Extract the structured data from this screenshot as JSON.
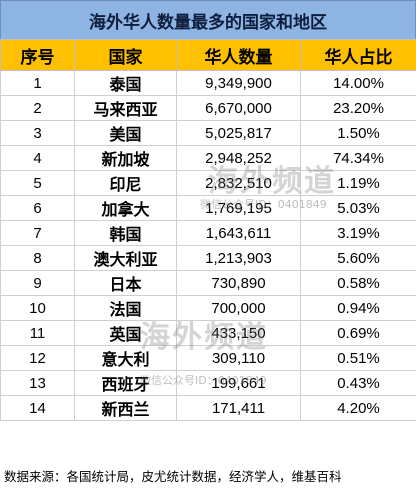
{
  "title": "海外华人数量最多的国家和地区",
  "headers": [
    "序号",
    "国家",
    "华人数量",
    "华人占比"
  ],
  "rows": [
    {
      "rank": "1",
      "country": "泰国",
      "population": "9,349,900",
      "share": "14.00%"
    },
    {
      "rank": "2",
      "country": "马来西亚",
      "population": "6,670,000",
      "share": "23.20%"
    },
    {
      "rank": "3",
      "country": "美国",
      "population": "5,025,817",
      "share": "1.50%"
    },
    {
      "rank": "4",
      "country": "新加坡",
      "population": "2,948,252",
      "share": "74.34%"
    },
    {
      "rank": "5",
      "country": "印尼",
      "population": "2,832,510",
      "share": "1.19%"
    },
    {
      "rank": "6",
      "country": "加拿大",
      "population": "1,769,195",
      "share": "5.03%"
    },
    {
      "rank": "7",
      "country": "韩国",
      "population": "1,643,611",
      "share": "3.19%"
    },
    {
      "rank": "8",
      "country": "澳大利亚",
      "population": "1,213,903",
      "share": "5.60%"
    },
    {
      "rank": "9",
      "country": "日本",
      "population": "730,890",
      "share": "0.58%"
    },
    {
      "rank": "10",
      "country": "法国",
      "population": "700,000",
      "share": "0.94%"
    },
    {
      "rank": "11",
      "country": "英国",
      "population": "433,150",
      "share": "0.69%"
    },
    {
      "rank": "12",
      "country": "意大利",
      "population": "309,110",
      "share": "0.51%"
    },
    {
      "rank": "13",
      "country": "西班牙",
      "population": "199,661",
      "share": "0.43%"
    },
    {
      "rank": "14",
      "country": "新西兰",
      "population": "171,411",
      "share": "4.20%"
    }
  ],
  "footer": "数据来源：各国统计局，皮尤统计数据，经济学人，维基百科",
  "watermark": {
    "main": "海外频道",
    "sub": "微信公众号ID：0401849"
  },
  "colors": {
    "title_bg": "#8eb4e3",
    "header_bg": "#ffc000"
  }
}
